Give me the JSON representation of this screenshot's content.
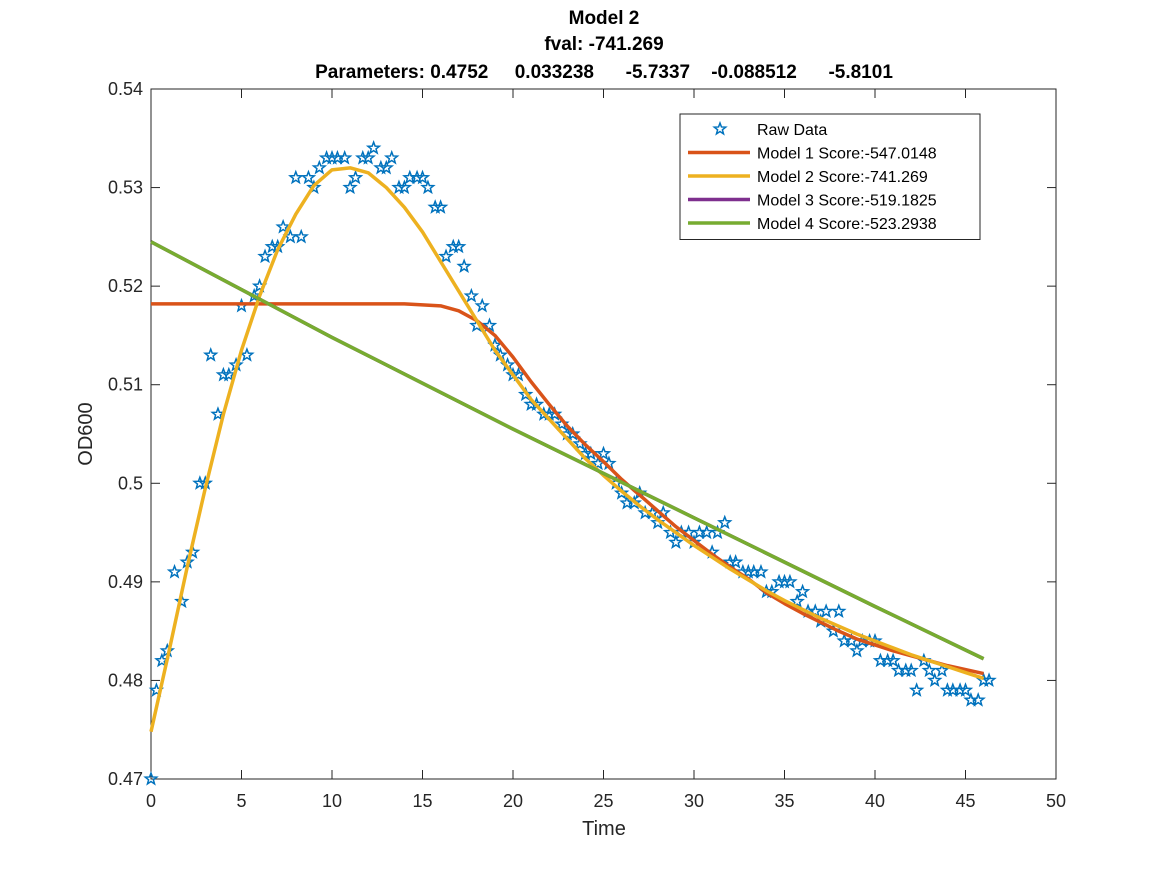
{
  "chart_data": {
    "type": "line",
    "title": [
      "Model 2",
      "fval: -741.269",
      "Parameters: 0.4752     0.033238      -5.7337    -0.088512      -5.8101"
    ],
    "xlabel": "Time",
    "ylabel": "OD600",
    "xlim": [
      0,
      50
    ],
    "ylim": [
      0.47,
      0.54
    ],
    "xticks": [
      0,
      5,
      10,
      15,
      20,
      25,
      30,
      35,
      40,
      45,
      50
    ],
    "yticks": [
      0.47,
      0.48,
      0.49,
      0.5,
      0.51,
      0.52,
      0.53,
      0.54
    ],
    "legend": "top-right",
    "series": [
      {
        "name": "Raw Data",
        "color": "#0072BD",
        "marker": "star",
        "x": [
          0,
          0.3,
          0.6,
          0.9,
          1.3,
          1.7,
          2.0,
          2.3,
          2.7,
          3.0,
          3.3,
          3.7,
          4.0,
          4.3,
          4.7,
          5.0,
          5.3,
          5.7,
          6.0,
          6.3,
          6.7,
          7.0,
          7.3,
          7.7,
          8.0,
          8.3,
          8.7,
          9.0,
          9.3,
          9.7,
          10.0,
          10.3,
          10.7,
          11.0,
          11.3,
          11.7,
          12.0,
          12.3,
          12.7,
          13.0,
          13.3,
          13.7,
          14.0,
          14.3,
          14.7,
          15.0,
          15.3,
          15.7,
          16.0,
          16.3,
          16.7,
          17.0,
          17.3,
          17.7,
          18.0,
          18.3,
          18.7,
          19.0,
          19.3,
          19.7,
          20.0,
          20.3,
          20.7,
          21.0,
          21.3,
          21.7,
          22.0,
          22.3,
          22.7,
          23.0,
          23.3,
          23.7,
          24.0,
          24.3,
          24.7,
          25.0,
          25.3,
          25.7,
          26.0,
          26.3,
          26.7,
          27.0,
          27.3,
          27.7,
          28.0,
          28.3,
          28.7,
          29.0,
          29.3,
          29.7,
          30.0,
          30.3,
          30.7,
          31.0,
          31.3,
          31.7,
          32.0,
          32.3,
          32.7,
          33.0,
          33.3,
          33.7,
          34.0,
          34.3,
          34.7,
          35.0,
          35.3,
          35.7,
          36.0,
          36.3,
          36.7,
          37.0,
          37.3,
          37.7,
          38.0,
          38.3,
          38.7,
          39.0,
          39.3,
          39.7,
          40.0,
          40.3,
          40.7,
          41.0,
          41.3,
          41.7,
          42.0,
          42.3,
          42.7,
          43.0,
          43.3,
          43.7,
          44.0,
          44.3,
          44.7,
          45.0,
          45.3,
          45.7,
          46.0,
          46.3
        ],
        "values": [
          0.47,
          0.479,
          0.482,
          0.483,
          0.491,
          0.488,
          0.492,
          0.493,
          0.5,
          0.5,
          0.513,
          0.507,
          0.511,
          0.511,
          0.512,
          0.518,
          0.513,
          0.519,
          0.52,
          0.523,
          0.524,
          0.524,
          0.526,
          0.525,
          0.531,
          0.525,
          0.531,
          0.53,
          0.532,
          0.533,
          0.533,
          0.533,
          0.533,
          0.53,
          0.531,
          0.533,
          0.533,
          0.534,
          0.532,
          0.532,
          0.533,
          0.53,
          0.53,
          0.531,
          0.531,
          0.531,
          0.53,
          0.528,
          0.528,
          0.523,
          0.524,
          0.524,
          0.522,
          0.519,
          0.516,
          0.518,
          0.516,
          0.514,
          0.513,
          0.512,
          0.511,
          0.511,
          0.509,
          0.508,
          0.508,
          0.507,
          0.507,
          0.507,
          0.506,
          0.505,
          0.505,
          0.504,
          0.503,
          0.503,
          0.502,
          0.503,
          0.502,
          0.5,
          0.499,
          0.498,
          0.498,
          0.499,
          0.497,
          0.497,
          0.496,
          0.497,
          0.495,
          0.494,
          0.495,
          0.495,
          0.494,
          0.495,
          0.495,
          0.493,
          0.495,
          0.496,
          0.492,
          0.492,
          0.491,
          0.491,
          0.491,
          0.491,
          0.489,
          0.489,
          0.49,
          0.49,
          0.49,
          0.488,
          0.489,
          0.487,
          0.487,
          0.486,
          0.487,
          0.485,
          0.487,
          0.484,
          0.484,
          0.483,
          0.484,
          0.484,
          0.484,
          0.482,
          0.482,
          0.482,
          0.481,
          0.481,
          0.481,
          0.479,
          0.482,
          0.481,
          0.48,
          0.481,
          0.479,
          0.479,
          0.479,
          0.479,
          0.478,
          0.478,
          0.48,
          0.48
        ]
      },
      {
        "name": "Model 1 Score:-547.0148",
        "color": "#D95319",
        "x": [
          0,
          1,
          2,
          3,
          4,
          5,
          6,
          7,
          8,
          9,
          10,
          11,
          12,
          13,
          14,
          15,
          16,
          17,
          18,
          19,
          20,
          21,
          22,
          23,
          24,
          25,
          26,
          27,
          28,
          29,
          30,
          31,
          32,
          33,
          34,
          35,
          36,
          37,
          38,
          39,
          40,
          41,
          42,
          43,
          44,
          45,
          46
        ],
        "values": [
          0.5182,
          0.5182,
          0.5182,
          0.5182,
          0.5182,
          0.5182,
          0.5182,
          0.5182,
          0.5182,
          0.5182,
          0.5182,
          0.5182,
          0.5182,
          0.5182,
          0.5182,
          0.5181,
          0.518,
          0.5175,
          0.5165,
          0.515,
          0.5128,
          0.5103,
          0.508,
          0.5058,
          0.5039,
          0.5022,
          0.5004,
          0.4988,
          0.4972,
          0.4956,
          0.4942,
          0.4928,
          0.4915,
          0.4903,
          0.4889,
          0.4878,
          0.4868,
          0.4859,
          0.485,
          0.4842,
          0.4836,
          0.483,
          0.4825,
          0.482,
          0.4815,
          0.4811,
          0.4807
        ]
      },
      {
        "name": "Model 2 Score:-741.269",
        "color": "#EDB120",
        "x": [
          0,
          1,
          2,
          3,
          4,
          5,
          6,
          7,
          8,
          9,
          10,
          11,
          12,
          13,
          14,
          15,
          16,
          17,
          18,
          19,
          20,
          21,
          22,
          23,
          24,
          25,
          26,
          27,
          28,
          29,
          30,
          31,
          32,
          33,
          34,
          35,
          36,
          37,
          38,
          39,
          40,
          41,
          42,
          43,
          44,
          45,
          46
        ],
        "values": [
          0.4748,
          0.483,
          0.4915,
          0.4995,
          0.507,
          0.5135,
          0.519,
          0.5237,
          0.5273,
          0.5302,
          0.5318,
          0.532,
          0.5315,
          0.53,
          0.528,
          0.5255,
          0.5225,
          0.5195,
          0.5165,
          0.5135,
          0.511,
          0.5085,
          0.5065,
          0.5045,
          0.5025,
          0.5008,
          0.4992,
          0.4977,
          0.4963,
          0.495,
          0.4937,
          0.4925,
          0.4913,
          0.4902,
          0.4891,
          0.4881,
          0.4872,
          0.4863,
          0.4855,
          0.4847,
          0.484,
          0.4833,
          0.4826,
          0.482,
          0.4814,
          0.4808,
          0.4802
        ]
      },
      {
        "name": "Model 3 Score:-519.1825",
        "color": "#7E2F8E",
        "x": [
          0,
          10,
          20,
          30,
          40,
          46
        ],
        "values": [
          0.5245,
          0.5148,
          0.5055,
          0.4965,
          0.4875,
          0.4822
        ]
      },
      {
        "name": "Model 4 Score:-523.2938",
        "color": "#77AC30",
        "x": [
          0,
          10,
          20,
          30,
          40,
          46
        ],
        "values": [
          0.5245,
          0.5148,
          0.5055,
          0.4965,
          0.4875,
          0.4822
        ]
      }
    ]
  }
}
